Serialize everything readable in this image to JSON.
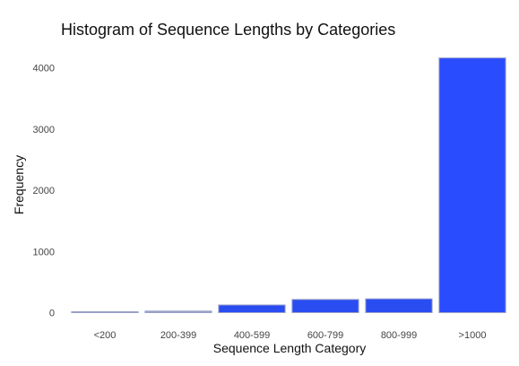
{
  "chart_data": {
    "type": "bar",
    "title": "Histogram of Sequence Lengths by Categories",
    "xlabel": "Sequence Length Category",
    "ylabel": "Frequency",
    "categories": [
      "<200",
      "200-399",
      "400-599",
      "600-799",
      "800-999",
      ">1000"
    ],
    "values": [
      3,
      25,
      125,
      215,
      225,
      4160
    ],
    "ylim": [
      0,
      4250
    ],
    "yticks": [
      0,
      1000,
      2000,
      3000,
      4000
    ],
    "grid": false,
    "legend": "none",
    "colors": {
      "bar_stroke": "#9aa0c8",
      "bar_fills": [
        "#d8dbe8",
        "#9ca0c8",
        "#2a4df2",
        "#2a4df2",
        "#2a4df2",
        "#2a4cff"
      ]
    }
  }
}
